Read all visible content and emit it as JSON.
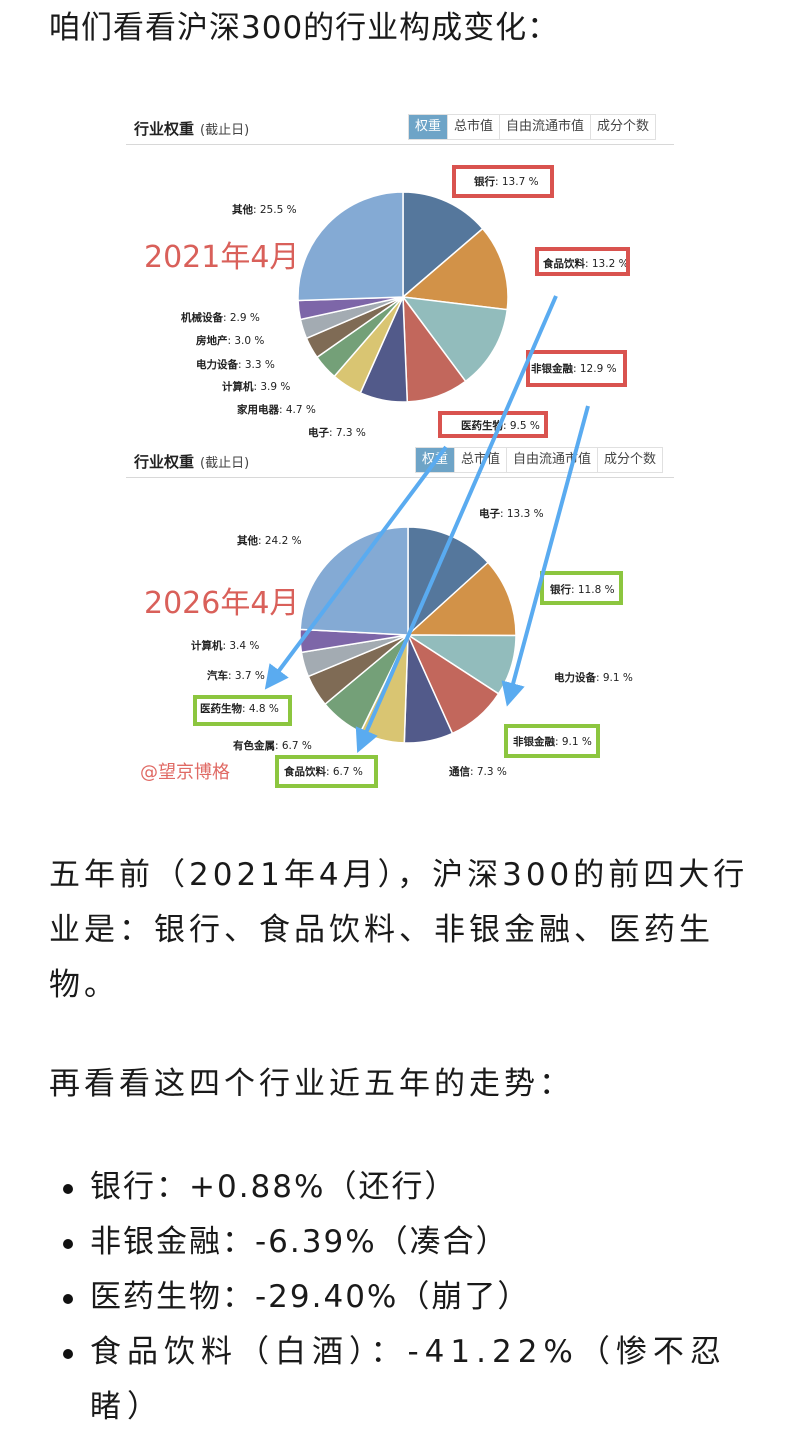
{
  "intro": "咱们看看沪深300的行业构成变化：",
  "chart_data": [
    {
      "type": "pie",
      "title": "行业权重",
      "subtitle": "(截止日)",
      "date_label": "2021年4月",
      "tabs": [
        "权重",
        "总市值",
        "自由流通市值",
        "成分个数"
      ],
      "active_tab": "权重",
      "categories": [
        "银行",
        "食品饮料",
        "非银金融",
        "医药生物",
        "电子",
        "家用电器",
        "计算机",
        "电力设备",
        "房地产",
        "机械设备",
        "其他"
      ],
      "values": [
        13.7,
        13.2,
        12.9,
        9.5,
        7.3,
        4.7,
        3.9,
        3.3,
        3.0,
        2.9,
        25.5
      ],
      "colors": [
        "#55779c",
        "#d29248",
        "#92bcbc",
        "#c2675c",
        "#525a8a",
        "#d9c572",
        "#74a078",
        "#7f6b55",
        "#a3abb2",
        "#7d66a8",
        "#84aad4"
      ],
      "highlighted": [
        "银行",
        "食品饮料",
        "非银金融",
        "医药生物"
      ],
      "highlight_color": "#d9534f",
      "unit": "%"
    },
    {
      "type": "pie",
      "title": "行业权重",
      "subtitle": "(截止日)",
      "date_label": "2026年4月",
      "tabs": [
        "权重",
        "总市值",
        "自由流通市值",
        "成分个数"
      ],
      "active_tab": "权重",
      "categories": [
        "电子",
        "银行",
        "电力设备",
        "非银金融",
        "通信",
        "食品饮料",
        "有色金属",
        "医药生物",
        "汽车",
        "计算机",
        "其他"
      ],
      "values": [
        13.3,
        11.8,
        9.1,
        9.1,
        7.3,
        6.7,
        6.7,
        4.8,
        3.7,
        3.4,
        24.2
      ],
      "colors": [
        "#55779c",
        "#d29248",
        "#92bcbc",
        "#c2675c",
        "#525a8a",
        "#d9c572",
        "#74a078",
        "#7f6b55",
        "#a3abb2",
        "#7d66a8",
        "#84aad4"
      ],
      "highlighted": [
        "银行",
        "非银金融",
        "食品饮料",
        "医药生物"
      ],
      "highlight_color": "#8cc63f",
      "unit": "%"
    }
  ],
  "charts": {
    "c1": {
      "title": "行业权重",
      "sub": "(截止日)",
      "date": "2021年4月",
      "tabs": [
        "权重",
        "总市值",
        "自由流通市值",
        "成分个数"
      ],
      "labels": {
        "bank": {
          "n": "银行",
          "v": ": 13.7 %"
        },
        "food": {
          "n": "食品饮料",
          "v": ": 13.2 %"
        },
        "nonbank": {
          "n": "非银金融",
          "v": ": 12.9 %"
        },
        "pharma": {
          "n": "医药生物",
          "v": ": 9.5 %"
        },
        "elec": {
          "n": "电子",
          "v": ": 7.3 %"
        },
        "appl": {
          "n": "家用电器",
          "v": ": 4.7 %"
        },
        "comp": {
          "n": "计算机",
          "v": ": 3.9 %"
        },
        "power": {
          "n": "电力设备",
          "v": ": 3.3 %"
        },
        "realty": {
          "n": "房地产",
          "v": ": 3.0 %"
        },
        "mach": {
          "n": "机械设备",
          "v": ": 2.9 %"
        },
        "other": {
          "n": "其他",
          "v": ": 25.5 %"
        }
      }
    },
    "c2": {
      "title": "行业权重",
      "sub": "(截止日)",
      "date": "2026年4月",
      "tabs": [
        "权重",
        "总市值",
        "自由流通市值",
        "成分个数"
      ],
      "labels": {
        "elec": {
          "n": "电子",
          "v": ": 13.3 %"
        },
        "bank": {
          "n": "银行",
          "v": ": 11.8 %"
        },
        "power": {
          "n": "电力设备",
          "v": ": 9.1 %"
        },
        "nonbank": {
          "n": "非银金融",
          "v": ": 9.1 %"
        },
        "telecom": {
          "n": "通信",
          "v": ": 7.3 %"
        },
        "food": {
          "n": "食品饮料",
          "v": ": 6.7 %"
        },
        "metal": {
          "n": "有色金属",
          "v": ": 6.7 %"
        },
        "pharma": {
          "n": "医药生物",
          "v": ": 4.8 %"
        },
        "auto": {
          "n": "汽车",
          "v": ": 3.7 %"
        },
        "comp": {
          "n": "计算机",
          "v": ": 3.4 %"
        },
        "other": {
          "n": "其他",
          "v": ": 24.2 %"
        }
      },
      "watermark": "@望京博格"
    }
  },
  "para1": "五年前（2021年4月），沪深300的前四大行业是：银行、食品饮料、非银金融、医药生物。",
  "para2": "再看看这四个行业近五年的走势：",
  "trends": [
    {
      "text": "银行：+0.88%（还行）"
    },
    {
      "text": "非银金融：-6.39%（凑合）"
    },
    {
      "text": "医药生物：-29.40%（崩了）"
    },
    {
      "text": "食品饮料（白酒）：-41.22%（惨不忍睹）"
    }
  ]
}
